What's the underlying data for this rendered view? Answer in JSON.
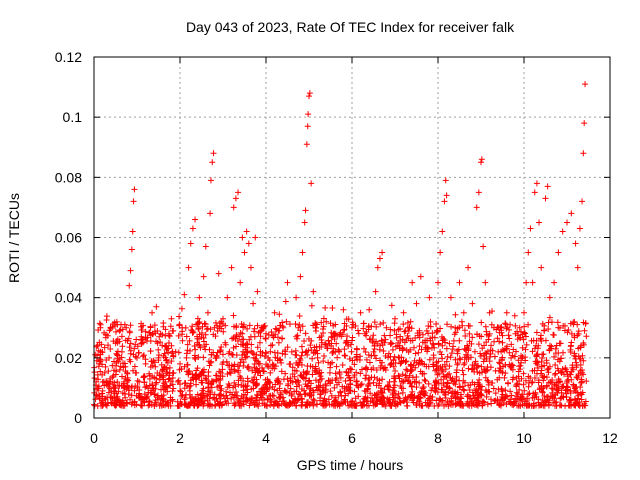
{
  "chart_data": {
    "type": "scatter",
    "title": "Day 043 of 2023, Rate Of TEC Index for receiver falk",
    "xlabel": "GPS time / hours",
    "ylabel": "ROTI / TECUs",
    "xlim": [
      0,
      12
    ],
    "ylim": [
      0,
      0.12
    ],
    "xticks": [
      0,
      2,
      4,
      6,
      8,
      10,
      12
    ],
    "xtick_labels": [
      "0",
      "2",
      "4",
      "6",
      "8",
      "10",
      "12"
    ],
    "yticks": [
      0,
      0.02,
      0.04,
      0.06,
      0.08,
      0.1,
      0.12
    ],
    "ytick_labels": [
      "0",
      "0.02",
      "0.04",
      "0.06",
      "0.08",
      "0.1",
      "0.12"
    ],
    "grid": true,
    "marker": "+",
    "color": "#ff0000",
    "legend": "none",
    "points": [
      [
        0.05,
        0.012
      ],
      [
        0.08,
        0.024
      ],
      [
        0.12,
        0.018
      ],
      [
        0.15,
        0.03
      ],
      [
        0.2,
        0.009
      ],
      [
        0.25,
        0.015
      ],
      [
        0.3,
        0.011
      ],
      [
        0.35,
        0.02
      ],
      [
        0.4,
        0.007
      ],
      [
        0.45,
        0.014
      ],
      [
        0.5,
        0.01
      ],
      [
        0.55,
        0.025
      ],
      [
        0.6,
        0.016
      ],
      [
        0.65,
        0.022
      ],
      [
        0.7,
        0.012
      ],
      [
        0.75,
        0.03
      ],
      [
        0.8,
        0.01
      ],
      [
        0.82,
        0.044
      ],
      [
        0.85,
        0.049
      ],
      [
        0.88,
        0.056
      ],
      [
        0.9,
        0.062
      ],
      [
        0.92,
        0.072
      ],
      [
        0.94,
        0.076
      ],
      [
        0.97,
        0.015
      ],
      [
        1.0,
        0.02
      ],
      [
        1.05,
        0.012
      ],
      [
        1.1,
        0.027
      ],
      [
        1.2,
        0.018
      ],
      [
        1.3,
        0.013
      ],
      [
        1.35,
        0.035
      ],
      [
        1.45,
        0.037
      ],
      [
        1.5,
        0.02
      ],
      [
        1.55,
        0.028
      ],
      [
        1.6,
        0.016
      ],
      [
        1.65,
        0.024
      ],
      [
        1.7,
        0.01
      ],
      [
        1.8,
        0.033
      ],
      [
        1.85,
        0.015
      ],
      [
        1.9,
        0.022
      ],
      [
        1.95,
        0.012
      ],
      [
        2.0,
        0.018
      ],
      [
        2.05,
        0.03
      ],
      [
        2.1,
        0.041
      ],
      [
        2.15,
        0.02
      ],
      [
        2.2,
        0.05
      ],
      [
        2.25,
        0.058
      ],
      [
        2.3,
        0.063
      ],
      [
        2.35,
        0.066
      ],
      [
        2.4,
        0.025
      ],
      [
        2.45,
        0.04
      ],
      [
        2.5,
        0.015
      ],
      [
        2.55,
        0.047
      ],
      [
        2.6,
        0.057
      ],
      [
        2.65,
        0.035
      ],
      [
        2.7,
        0.068
      ],
      [
        2.72,
        0.079
      ],
      [
        2.75,
        0.085
      ],
      [
        2.78,
        0.088
      ],
      [
        2.8,
        0.03
      ],
      [
        2.85,
        0.02
      ],
      [
        2.9,
        0.048
      ],
      [
        2.95,
        0.015
      ],
      [
        3.0,
        0.033
      ],
      [
        3.05,
        0.025
      ],
      [
        3.1,
        0.04
      ],
      [
        3.15,
        0.022
      ],
      [
        3.2,
        0.05
      ],
      [
        3.25,
        0.07
      ],
      [
        3.3,
        0.073
      ],
      [
        3.35,
        0.075
      ],
      [
        3.4,
        0.045
      ],
      [
        3.45,
        0.06
      ],
      [
        3.5,
        0.055
      ],
      [
        3.55,
        0.062
      ],
      [
        3.6,
        0.058
      ],
      [
        3.65,
        0.05
      ],
      [
        3.7,
        0.038
      ],
      [
        3.75,
        0.06
      ],
      [
        3.8,
        0.042
      ],
      [
        3.9,
        0.03
      ],
      [
        4.0,
        0.028
      ],
      [
        4.05,
        0.02
      ],
      [
        4.1,
        0.015
      ],
      [
        4.2,
        0.035
      ],
      [
        4.3,
        0.025
      ],
      [
        4.4,
        0.03
      ],
      [
        4.5,
        0.045
      ],
      [
        4.6,
        0.022
      ],
      [
        4.7,
        0.04
      ],
      [
        4.75,
        0.03
      ],
      [
        4.8,
        0.047
      ],
      [
        4.85,
        0.055
      ],
      [
        4.9,
        0.065
      ],
      [
        4.92,
        0.069
      ],
      [
        4.95,
        0.091
      ],
      [
        4.97,
        0.097
      ],
      [
        4.98,
        0.101
      ],
      [
        5.0,
        0.107
      ],
      [
        5.02,
        0.108
      ],
      [
        5.05,
        0.078
      ],
      [
        5.1,
        0.042
      ],
      [
        5.15,
        0.03
      ],
      [
        5.2,
        0.02
      ],
      [
        5.3,
        0.025
      ],
      [
        5.4,
        0.032
      ],
      [
        5.5,
        0.018
      ],
      [
        5.6,
        0.028
      ],
      [
        5.7,
        0.022
      ],
      [
        5.8,
        0.036
      ],
      [
        5.9,
        0.025
      ],
      [
        6.0,
        0.03
      ],
      [
        6.1,
        0.02
      ],
      [
        6.2,
        0.035
      ],
      [
        6.3,
        0.028
      ],
      [
        6.4,
        0.036
      ],
      [
        6.5,
        0.022
      ],
      [
        6.55,
        0.042
      ],
      [
        6.6,
        0.05
      ],
      [
        6.65,
        0.053
      ],
      [
        6.7,
        0.055
      ],
      [
        6.8,
        0.03
      ],
      [
        6.9,
        0.025
      ],
      [
        7.0,
        0.033
      ],
      [
        7.1,
        0.02
      ],
      [
        7.2,
        0.035
      ],
      [
        7.3,
        0.03
      ],
      [
        7.4,
        0.045
      ],
      [
        7.5,
        0.038
      ],
      [
        7.6,
        0.047
      ],
      [
        7.7,
        0.025
      ],
      [
        7.8,
        0.04
      ],
      [
        7.9,
        0.02
      ],
      [
        8.0,
        0.045
      ],
      [
        8.05,
        0.055
      ],
      [
        8.1,
        0.062
      ],
      [
        8.15,
        0.072
      ],
      [
        8.18,
        0.079
      ],
      [
        8.2,
        0.074
      ],
      [
        8.3,
        0.04
      ],
      [
        8.4,
        0.03
      ],
      [
        8.5,
        0.045
      ],
      [
        8.6,
        0.035
      ],
      [
        8.7,
        0.05
      ],
      [
        8.8,
        0.038
      ],
      [
        8.9,
        0.07
      ],
      [
        8.95,
        0.075
      ],
      [
        9.0,
        0.085
      ],
      [
        9.02,
        0.086
      ],
      [
        9.05,
        0.057
      ],
      [
        9.1,
        0.045
      ],
      [
        9.2,
        0.035
      ],
      [
        9.3,
        0.03
      ],
      [
        9.4,
        0.022
      ],
      [
        9.5,
        0.025
      ],
      [
        9.6,
        0.035
      ],
      [
        9.7,
        0.02
      ],
      [
        9.8,
        0.028
      ],
      [
        9.9,
        0.03
      ],
      [
        10.0,
        0.035
      ],
      [
        10.05,
        0.045
      ],
      [
        10.1,
        0.055
      ],
      [
        10.15,
        0.063
      ],
      [
        10.2,
        0.045
      ],
      [
        10.25,
        0.075
      ],
      [
        10.3,
        0.078
      ],
      [
        10.35,
        0.065
      ],
      [
        10.4,
        0.05
      ],
      [
        10.5,
        0.073
      ],
      [
        10.55,
        0.077
      ],
      [
        10.6,
        0.04
      ],
      [
        10.7,
        0.045
      ],
      [
        10.8,
        0.055
      ],
      [
        10.9,
        0.062
      ],
      [
        11.0,
        0.065
      ],
      [
        11.1,
        0.068
      ],
      [
        11.2,
        0.058
      ],
      [
        11.25,
        0.05
      ],
      [
        11.3,
        0.063
      ],
      [
        11.35,
        0.072
      ],
      [
        11.38,
        0.088
      ],
      [
        11.4,
        0.098
      ],
      [
        11.42,
        0.111
      ]
    ]
  }
}
